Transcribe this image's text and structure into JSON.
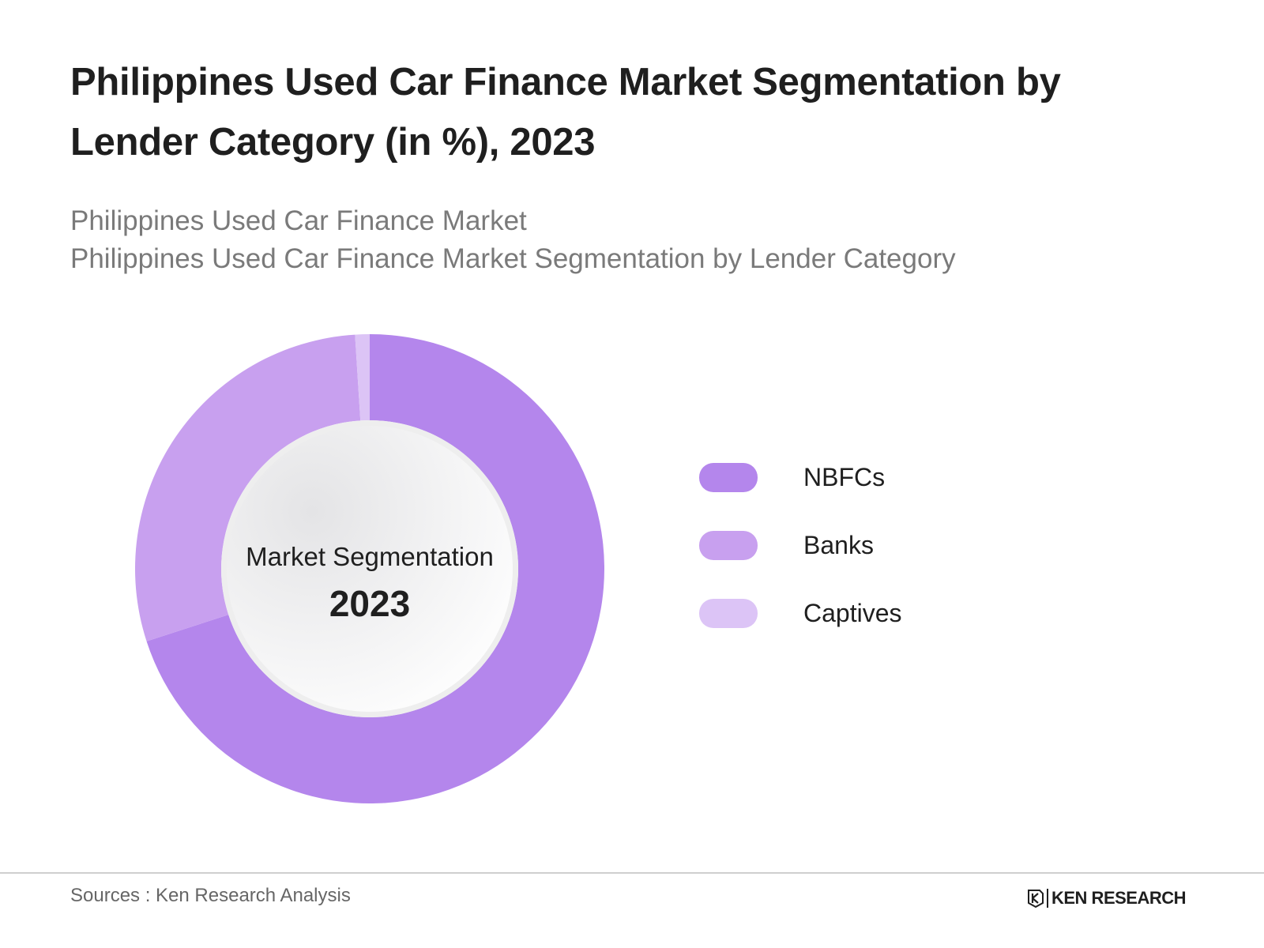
{
  "title": "Philippines Used Car Finance Market Segmentation by Lender Category (in %), 2023",
  "subtitle_line1": "Philippines Used Car Finance Market",
  "subtitle_line2": "Philippines Used Car Finance Market Segmentation by Lender Category",
  "center": {
    "label": "Market Segmentation",
    "year": "2023"
  },
  "footer": {
    "sources": "Sources : Ken Research Analysis",
    "brand": "KEN RESEARCH"
  },
  "chart_data": {
    "type": "pie",
    "variant": "donut",
    "categories": [
      "NBFCs",
      "Banks",
      "Captives"
    ],
    "values": [
      70,
      29,
      1
    ],
    "colors": [
      "#b486ec",
      "#c8a0ef",
      "#dcc4f6"
    ],
    "legend_position": "right"
  }
}
